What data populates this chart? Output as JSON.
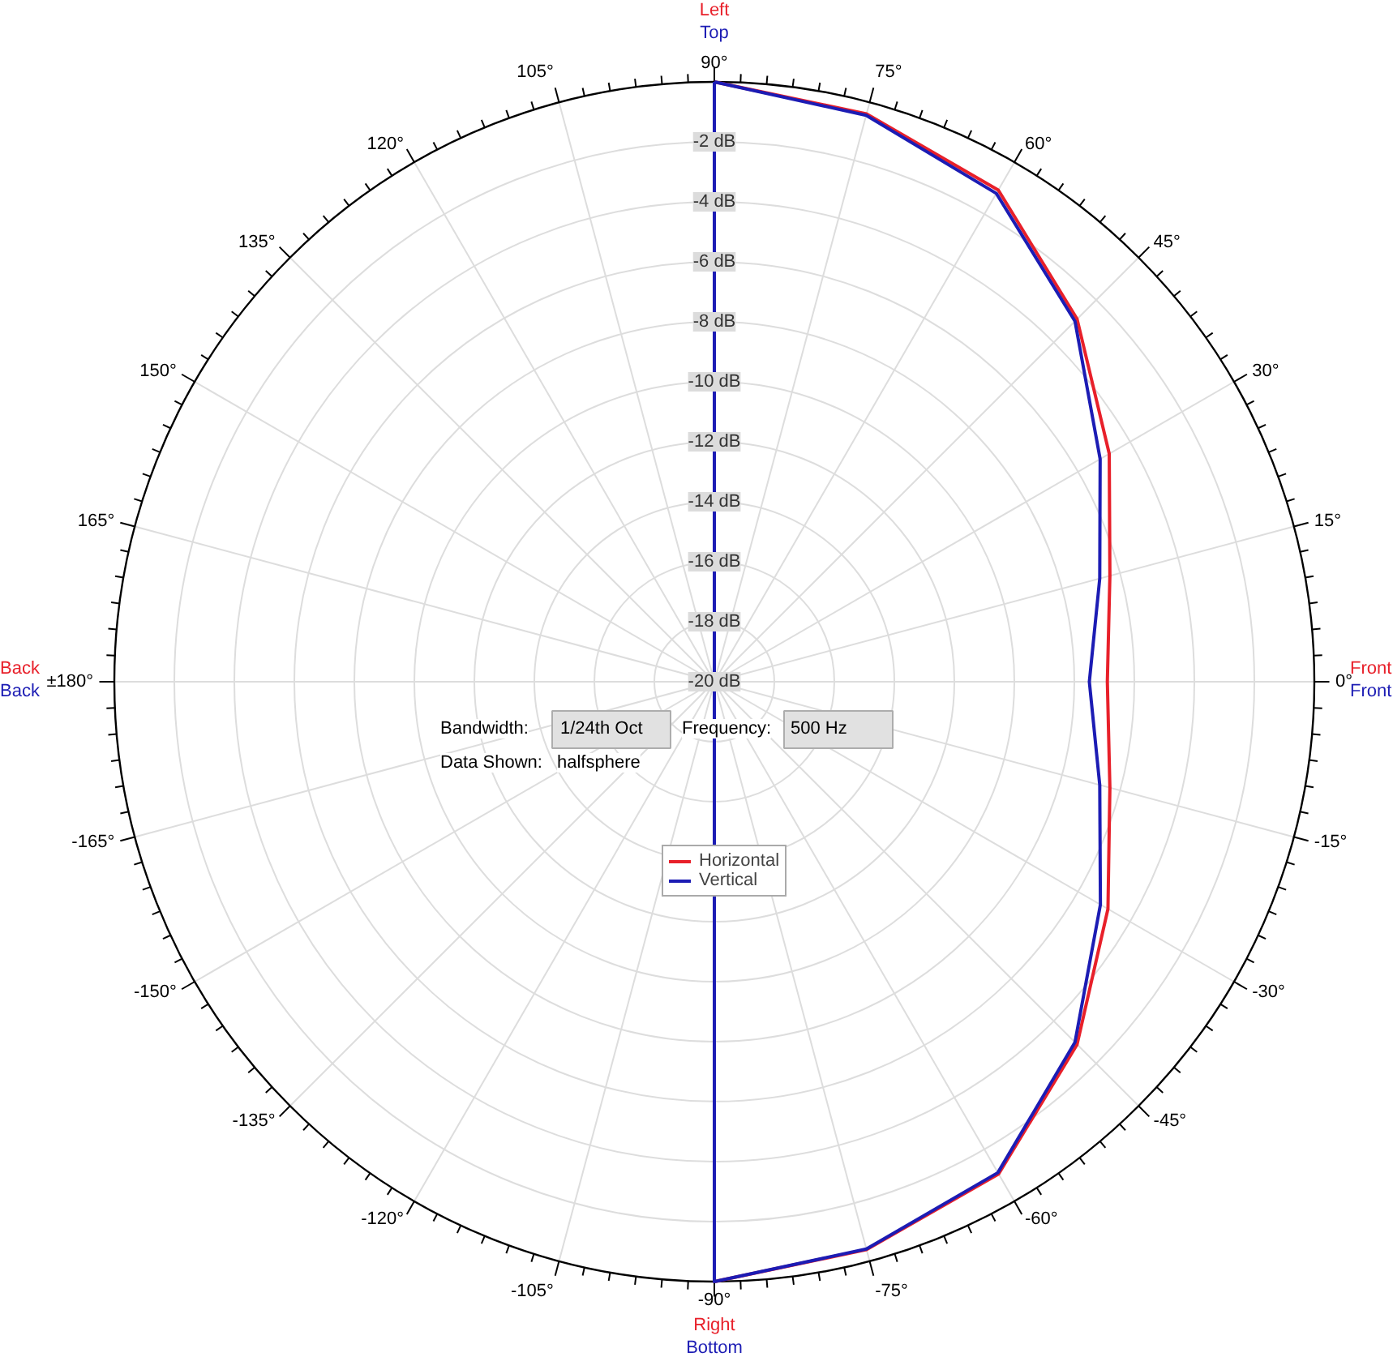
{
  "chart_data": {
    "type": "radar",
    "ylim": [
      -20,
      0
    ],
    "yticks": [
      {
        "value": -2,
        "label": "-2 dB"
      },
      {
        "value": -4,
        "label": "-4 dB"
      },
      {
        "value": -6,
        "label": "-6 dB"
      },
      {
        "value": -8,
        "label": "-8 dB"
      },
      {
        "value": -10,
        "label": "-10 dB"
      },
      {
        "value": -12,
        "label": "-12 dB"
      },
      {
        "value": -14,
        "label": "-14 dB"
      },
      {
        "value": -16,
        "label": "-16 dB"
      },
      {
        "value": -18,
        "label": "-18 dB"
      },
      {
        "value": -20,
        "label": "-20 dB"
      }
    ],
    "categories": [
      "90°",
      "75°",
      "60°",
      "45°",
      "30°",
      "15°",
      "0°",
      "-15°",
      "-30°",
      "-45°",
      "-60°",
      "-75°",
      "-90°",
      "-105°",
      "-120°",
      "-135°",
      "-150°",
      "-165°",
      "±180°",
      "165°",
      "150°",
      "135°",
      "120°",
      "105°"
    ],
    "series": [
      {
        "name": "Horizontal",
        "color": "#e8202a",
        "values": [
          0,
          -0.4,
          -1.07,
          -2.9,
          -4.8,
          -6.35,
          -6.9,
          -6.35,
          -4.85,
          -2.9,
          -1.05,
          -0.4,
          0,
          -20,
          -20,
          -20,
          -20,
          -20,
          -20,
          -20,
          -20,
          -20,
          -20,
          -20
        ]
      },
      {
        "name": "Vertical",
        "color": "#1c1cb4",
        "values": [
          0,
          -0.45,
          -1.2,
          -3.0,
          -5.15,
          -6.7,
          -7.5,
          -6.7,
          -5.14,
          -3.0,
          -1.1,
          -0.42,
          0,
          -20,
          -20,
          -20,
          -20,
          -20,
          -20,
          -20,
          -20,
          -20,
          -20,
          -20
        ]
      }
    ],
    "annotations": [
      "Left",
      "Top",
      "Right",
      "Bottom",
      "Back",
      "Back",
      "Front",
      "Front",
      "Bandwidth:",
      "1/24th Oct",
      "Frequency:",
      "500 Hz",
      "Data Shown:",
      "halfsphere"
    ],
    "legend": "center",
    "grid": true
  }
}
